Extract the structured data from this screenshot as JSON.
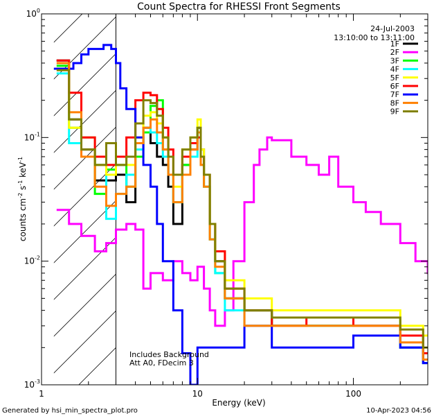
{
  "footer": {
    "left": "Generated by hsi_min_spectra_plot.pro",
    "right": "10-Apr-2023 04:56"
  },
  "chart_data": {
    "type": "line",
    "title": "Count Spectra for RHESSI Front Segments",
    "xlabel": "Energy (keV)",
    "ylabel_parts": [
      "counts cm",
      "-2",
      " s",
      "-1",
      " keV",
      "-1"
    ],
    "x_scale": "log",
    "y_scale": "log",
    "xlim": [
      1,
      300
    ],
    "ylim": [
      0.001,
      1
    ],
    "x_ticks": [
      {
        "value": 1,
        "label": "1"
      },
      {
        "value": 10,
        "label": "10"
      },
      {
        "value": 100,
        "label": "100"
      }
    ],
    "y_ticks": [
      {
        "value": 0.001,
        "base": "10",
        "exp": "-3"
      },
      {
        "value": 0.01,
        "base": "10",
        "exp": "-2"
      },
      {
        "value": 0.1,
        "base": "10",
        "exp": "-1"
      },
      {
        "value": 1,
        "base": "10",
        "exp": "0"
      }
    ],
    "shaded_region": {
      "x_from": 1.2,
      "x_to": 3,
      "style": "hatched"
    },
    "legend": {
      "position": "top-right",
      "header": [
        "24-Jul-2003",
        "13:10:00 to 13:11:00"
      ]
    },
    "annotations": [
      "Includes Background",
      "Att A0, FDecim 3"
    ],
    "series": [
      {
        "name": "1F",
        "color": "#000000",
        "x": [
          1.25,
          1.5,
          1.8,
          2.2,
          2.6,
          3.0,
          3.5,
          4.0,
          4.5,
          5.0,
          5.5,
          6.0,
          6.5,
          7.0,
          8.0,
          9.0,
          10.0,
          10.5,
          11.0,
          12.0,
          13.0,
          15.0,
          20.0,
          30.0,
          50.0,
          100.0,
          200.0,
          280.0
        ],
        "y": [
          0.42,
          0.14,
          0.08,
          0.045,
          0.045,
          0.05,
          0.03,
          0.09,
          0.12,
          0.09,
          0.07,
          0.06,
          0.04,
          0.02,
          0.06,
          0.08,
          0.12,
          0.08,
          0.05,
          0.02,
          0.01,
          0.005,
          0.004,
          0.003,
          0.003,
          0.003,
          0.002,
          0.0015
        ]
      },
      {
        "name": "2F",
        "color": "#ff00ff",
        "x": [
          1.25,
          1.5,
          1.8,
          2.2,
          2.6,
          3.0,
          3.5,
          4.0,
          4.5,
          5.0,
          6.0,
          7.0,
          8.0,
          9.0,
          10.0,
          11.0,
          12.0,
          13.0,
          15.0,
          17.0,
          20.0,
          23.0,
          25.0,
          28.0,
          30.0,
          40.0,
          50.0,
          60.0,
          70.0,
          80.0,
          100.0,
          120.0,
          150.0,
          200.0,
          250.0,
          300.0
        ],
        "y": [
          0.026,
          0.02,
          0.016,
          0.012,
          0.014,
          0.018,
          0.02,
          0.018,
          0.006,
          0.008,
          0.007,
          0.01,
          0.008,
          0.007,
          0.009,
          0.006,
          0.004,
          0.003,
          0.004,
          0.01,
          0.03,
          0.06,
          0.08,
          0.1,
          0.095,
          0.07,
          0.06,
          0.05,
          0.07,
          0.04,
          0.03,
          0.025,
          0.02,
          0.014,
          0.01,
          0.008
        ]
      },
      {
        "name": "3F",
        "color": "#00ff00",
        "x": [
          1.25,
          1.5,
          1.8,
          2.2,
          2.6,
          3.0,
          3.5,
          4.0,
          4.5,
          5.0,
          5.5,
          6.0,
          6.5,
          7.0,
          8.0,
          9.0,
          10.0,
          10.5,
          11.0,
          12.0,
          13.0,
          15.0,
          20.0,
          30.0,
          50.0,
          100.0,
          200.0,
          280.0
        ],
        "y": [
          0.38,
          0.12,
          0.07,
          0.035,
          0.055,
          0.06,
          0.04,
          0.07,
          0.11,
          0.18,
          0.2,
          0.08,
          0.05,
          0.03,
          0.06,
          0.09,
          0.12,
          0.07,
          0.04,
          0.015,
          0.008,
          0.005,
          0.004,
          0.003,
          0.003,
          0.0035,
          0.0025,
          0.0018
        ]
      },
      {
        "name": "4F",
        "color": "#00ffff",
        "x": [
          1.25,
          1.5,
          1.8,
          2.2,
          2.6,
          3.0,
          3.5,
          4.0,
          4.5,
          5.0,
          5.5,
          6.0,
          6.5,
          7.0,
          8.0,
          9.0,
          10.0,
          10.5,
          11.0,
          12.0,
          13.0,
          15.0,
          20.0,
          30.0,
          50.0,
          100.0,
          200.0,
          280.0
        ],
        "y": [
          0.33,
          0.09,
          0.1,
          0.06,
          0.022,
          0.035,
          0.05,
          0.08,
          0.12,
          0.11,
          0.09,
          0.07,
          0.05,
          0.03,
          0.05,
          0.07,
          0.11,
          0.06,
          0.04,
          0.015,
          0.008,
          0.004,
          0.003,
          0.003,
          0.003,
          0.003,
          0.002,
          0.0015
        ]
      },
      {
        "name": "5F",
        "color": "#ffff00",
        "x": [
          1.25,
          1.5,
          1.8,
          2.2,
          2.6,
          3.0,
          3.5,
          4.0,
          4.5,
          5.0,
          5.5,
          6.0,
          6.5,
          7.0,
          8.0,
          9.0,
          10.0,
          10.5,
          11.0,
          12.0,
          13.0,
          15.0,
          20.0,
          30.0,
          50.0,
          100.0,
          200.0,
          280.0
        ],
        "y": [
          0.36,
          0.12,
          0.1,
          0.06,
          0.05,
          0.07,
          0.06,
          0.1,
          0.15,
          0.16,
          0.13,
          0.1,
          0.07,
          0.04,
          0.08,
          0.1,
          0.14,
          0.08,
          0.05,
          0.02,
          0.012,
          0.007,
          0.005,
          0.004,
          0.004,
          0.004,
          0.003,
          0.0025
        ]
      },
      {
        "name": "6F",
        "color": "#ff0000",
        "x": [
          1.25,
          1.5,
          1.8,
          2.2,
          2.6,
          3.0,
          3.5,
          4.0,
          4.5,
          5.0,
          5.5,
          6.0,
          6.5,
          7.0,
          8.0,
          9.0,
          10.0,
          10.5,
          11.0,
          12.0,
          13.0,
          15.0,
          20.0,
          30.0,
          50.0,
          100.0,
          200.0,
          280.0
        ],
        "y": [
          0.42,
          0.23,
          0.1,
          0.07,
          0.06,
          0.07,
          0.1,
          0.2,
          0.23,
          0.22,
          0.17,
          0.12,
          0.08,
          0.05,
          0.07,
          0.09,
          0.1,
          0.07,
          0.05,
          0.02,
          0.012,
          0.006,
          0.004,
          0.003,
          0.0035,
          0.003,
          0.0025,
          0.0018
        ]
      },
      {
        "name": "7F",
        "color": "#0000ff",
        "x": [
          1.2,
          1.4,
          1.6,
          1.8,
          2.0,
          2.2,
          2.5,
          2.8,
          3.0,
          3.2,
          3.5,
          4.0,
          4.5,
          5.0,
          5.5,
          6.0,
          7.0,
          8.0,
          9.0,
          10.0,
          12.0,
          15.0,
          20.0,
          30.0,
          50.0,
          100.0,
          200.0,
          280.0
        ],
        "y": [
          0.36,
          0.36,
          0.4,
          0.47,
          0.52,
          0.52,
          0.56,
          0.52,
          0.4,
          0.25,
          0.17,
          0.1,
          0.06,
          0.04,
          0.02,
          0.01,
          0.004,
          0.0018,
          0.001,
          0.002,
          0.002,
          0.002,
          0.003,
          0.002,
          0.002,
          0.0025,
          0.002,
          0.0015
        ]
      },
      {
        "name": "8F",
        "color": "#ff8000",
        "x": [
          1.25,
          1.5,
          1.8,
          2.2,
          2.6,
          3.0,
          3.5,
          4.0,
          4.5,
          5.0,
          5.5,
          6.0,
          6.5,
          7.0,
          8.0,
          9.0,
          10.0,
          10.5,
          11.0,
          12.0,
          13.0,
          15.0,
          20.0,
          30.0,
          50.0,
          100.0,
          200.0,
          280.0
        ],
        "y": [
          0.4,
          0.16,
          0.07,
          0.04,
          0.028,
          0.035,
          0.04,
          0.09,
          0.12,
          0.14,
          0.11,
          0.08,
          0.05,
          0.03,
          0.05,
          0.08,
          0.11,
          0.06,
          0.04,
          0.015,
          0.009,
          0.005,
          0.003,
          0.003,
          0.003,
          0.003,
          0.0022,
          0.0016
        ]
      },
      {
        "name": "9F",
        "color": "#808000",
        "x": [
          1.25,
          1.5,
          1.8,
          2.2,
          2.6,
          3.0,
          3.5,
          4.0,
          4.5,
          5.0,
          5.5,
          6.0,
          6.5,
          7.0,
          8.0,
          9.0,
          10.0,
          10.5,
          11.0,
          12.0,
          13.0,
          15.0,
          20.0,
          30.0,
          50.0,
          100.0,
          200.0,
          280.0
        ],
        "y": [
          0.35,
          0.14,
          0.08,
          0.06,
          0.09,
          0.06,
          0.07,
          0.13,
          0.2,
          0.19,
          0.15,
          0.1,
          0.07,
          0.05,
          0.08,
          0.1,
          0.12,
          0.07,
          0.05,
          0.02,
          0.01,
          0.006,
          0.004,
          0.0035,
          0.0035,
          0.0035,
          0.0028,
          0.002
        ]
      }
    ]
  }
}
